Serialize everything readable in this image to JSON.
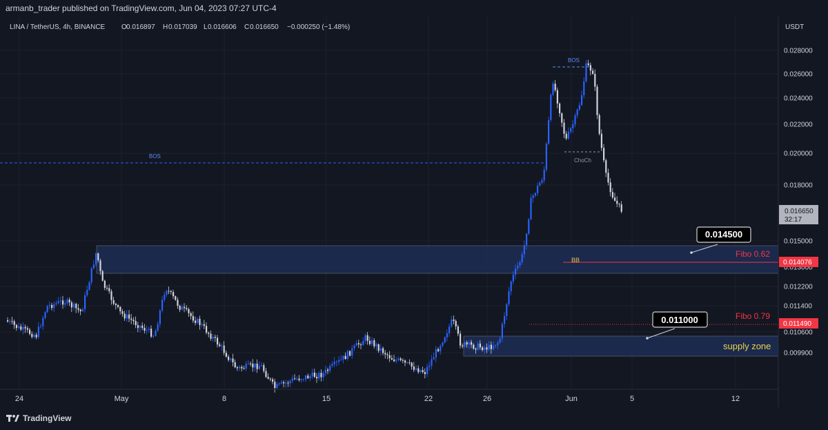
{
  "header": {
    "published": "armanb_trader published on TradingView.com, Jun 04, 2023 07:27 UTC-4"
  },
  "footer": {
    "brand": "TradingView",
    "logo_icon": "tradingview-logo-icon"
  },
  "chart_data": {
    "type": "candlestick",
    "legend": {
      "symbol": "LINA / TetherUS, 4h, BINANCE",
      "o_label": "O",
      "o": "0.016897",
      "h_label": "H",
      "h": "0.017039",
      "l_label": "L",
      "l": "0.016606",
      "c_label": "C",
      "c": "0.016650",
      "change": "−0.000250 (−1.48%)"
    },
    "currency": "USDT",
    "y_ticks": [
      "0.028000",
      "0.026000",
      "0.024000",
      "0.022000",
      "0.020000",
      "0.018000",
      "0.015000",
      "0.013000",
      "0.012200",
      "0.011400",
      "0.010600",
      "0.009900"
    ],
    "x_ticks": [
      "24",
      "May",
      "8",
      "15",
      "22",
      "26",
      "Jun",
      "5",
      "12"
    ],
    "last_price": {
      "value": "0.016650",
      "countdown": "32:17"
    },
    "levels": [
      {
        "label": "Fibo 0.62",
        "value": "0.014076",
        "color": "#f23645"
      },
      {
        "label": "Fibo 0.79",
        "value": "0.011490",
        "color": "#f23645"
      }
    ],
    "callouts": [
      {
        "text": "0.014500"
      },
      {
        "text": "0.011000"
      }
    ],
    "annotations": {
      "bos_left": "BOS",
      "bos_top": "BOS",
      "choch": "ChoCh",
      "bb": "BB",
      "supply_zone": "supply zone"
    },
    "colors": {
      "up": "#2962ff",
      "down": "#d1d4dc",
      "zone": "#1c2b4f",
      "background": "#131722"
    }
  }
}
